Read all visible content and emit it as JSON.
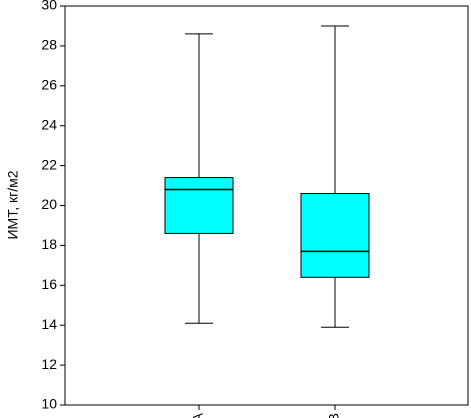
{
  "chart_data": {
    "type": "box",
    "y_label": "ИМТ, кг/м2",
    "categories": [
      "A",
      "B"
    ],
    "boxes": [
      {
        "min": 14.1,
        "q1": 18.6,
        "median": 20.8,
        "q3": 21.4,
        "max": 28.6
      },
      {
        "min": 13.9,
        "q1": 16.4,
        "median": 17.7,
        "q3": 20.6,
        "max": 29.0
      }
    ],
    "color": "#00ffff",
    "ylim": [
      10,
      30
    ],
    "yticks": [
      10,
      12,
      14,
      16,
      18,
      20,
      22,
      24,
      26,
      28,
      30
    ]
  }
}
